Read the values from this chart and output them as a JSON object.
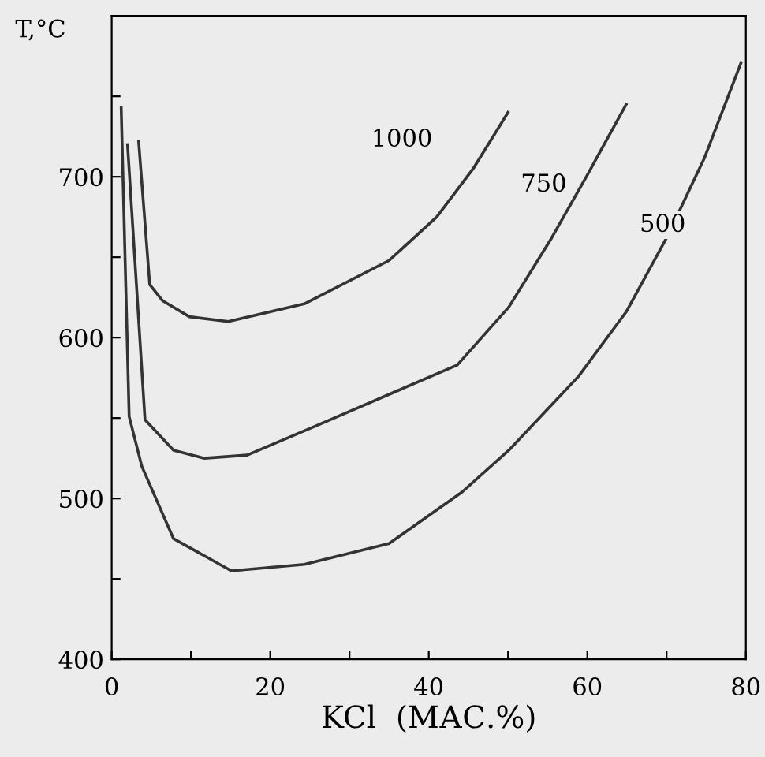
{
  "chart_data": {
    "type": "line",
    "ylabel": "T,°C",
    "xlabel": "KCl  (МАС.%)",
    "xlim": [
      0,
      80
    ],
    "ylim": [
      400,
      800
    ],
    "xticks": [
      0,
      {
        "value": 10,
        "label": null
      },
      20,
      {
        "value": 30,
        "label": null
      },
      40,
      {
        "value": 50,
        "label": null
      },
      60,
      {
        "value": 70,
        "label": null
      },
      80
    ],
    "yticks": [
      400,
      {
        "value": 450,
        "label": null
      },
      500,
      {
        "value": 550,
        "label": null
      },
      600,
      {
        "value": 650,
        "label": null
      },
      700,
      {
        "value": 750,
        "label": null
      }
    ],
    "grid": false,
    "legend": false,
    "marker": "none",
    "line_style": "solid",
    "series": [
      {
        "name": "1000",
        "color": "#333333",
        "x": [
          3.4,
          4.8,
          6.4,
          9.8,
          14.7,
          24.3,
          35.0,
          41.0,
          45.6,
          50.0
        ],
        "values": [
          722,
          633,
          623,
          613,
          610,
          621,
          648,
          675,
          705,
          740
        ]
      },
      {
        "name": "750",
        "color": "#333333",
        "x": [
          2.0,
          4.2,
          7.8,
          11.7,
          17.1,
          25.7,
          35.6,
          43.6,
          50.1,
          55.5,
          60.1,
          64.9
        ],
        "values": [
          720,
          549,
          530,
          525,
          527,
          545,
          566,
          583,
          619,
          662,
          702,
          745
        ]
      },
      {
        "name": "500",
        "color": "#333333",
        "x": [
          1.2,
          2.2,
          3.8,
          7.8,
          15.1,
          24.3,
          35.0,
          44.2,
          50.1,
          58.9,
          64.9,
          70.0,
          74.8,
          79.4
        ],
        "values": [
          743,
          551,
          520,
          475,
          455,
          459,
          472,
          504,
          530,
          576,
          616,
          662,
          712,
          771
        ]
      }
    ]
  }
}
